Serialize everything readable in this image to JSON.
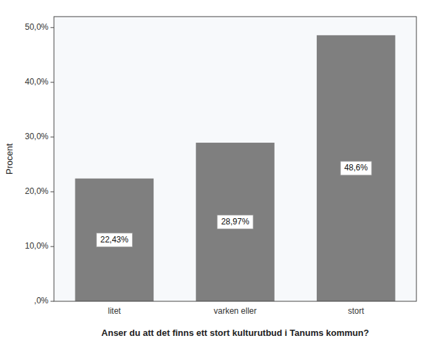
{
  "chart_data": {
    "type": "bar",
    "categories": [
      "litet",
      "varken eller",
      "stort"
    ],
    "values": [
      22.43,
      28.97,
      48.6
    ],
    "value_labels": [
      "22,43%",
      "28,97%",
      "48,6%"
    ],
    "data_labels": true,
    "color": "#7f7f7f",
    "xlabel": "Anser du att det finns ett stort kulturutbud i Tanums kommun?",
    "ylabel": "Procent",
    "ylim": [
      0,
      52
    ],
    "yticks": [
      {
        "value": 0,
        "label": ",0%"
      },
      {
        "value": 10,
        "label": "10,0%"
      },
      {
        "value": 20,
        "label": "20,0%"
      },
      {
        "value": 30,
        "label": "30,0%"
      },
      {
        "value": 40,
        "label": "40,0%"
      },
      {
        "value": 50,
        "label": "50,0%"
      }
    ],
    "grid": false
  }
}
